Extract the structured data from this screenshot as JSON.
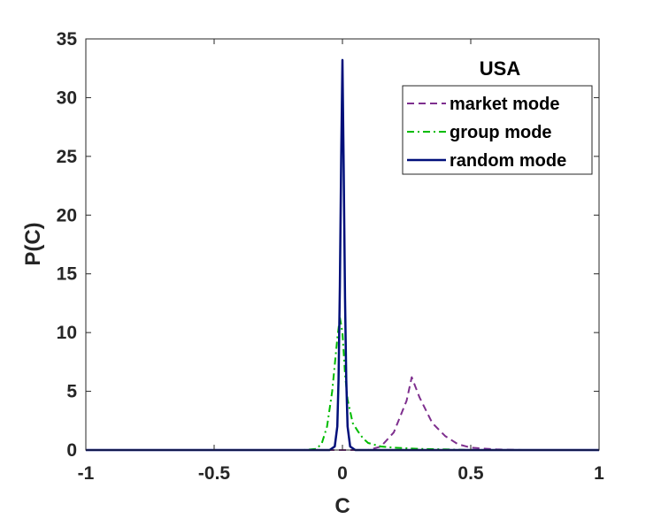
{
  "chart_data": {
    "type": "line",
    "title": "",
    "annotation": "USA",
    "xlabel": "C",
    "ylabel": "P(C)",
    "xlim": [
      -1,
      1
    ],
    "ylim": [
      0,
      35
    ],
    "xticks": [
      -1,
      -0.5,
      0,
      0.5,
      1
    ],
    "xtick_labels": [
      "-1",
      "-0.5",
      "0",
      "0.5",
      "1"
    ],
    "yticks": [
      0,
      5,
      10,
      15,
      20,
      25,
      30,
      35
    ],
    "ytick_labels": [
      "0",
      "5",
      "10",
      "15",
      "20",
      "25",
      "30",
      "35"
    ],
    "grid": false,
    "legend_position": "top-right",
    "series": [
      {
        "name": "market mode",
        "style": "dashed",
        "color": "#7E2F8E",
        "x": [
          -1,
          0.1,
          0.15,
          0.2,
          0.25,
          0.27,
          0.3,
          0.35,
          0.4,
          0.45,
          0.5,
          0.6,
          0.7,
          1
        ],
        "y": [
          0,
          0,
          0.3,
          1.5,
          4.2,
          6.2,
          4.5,
          2.3,
          1.2,
          0.5,
          0.2,
          0.05,
          0,
          0
        ]
      },
      {
        "name": "group mode",
        "style": "dashdot",
        "color": "#00BB00",
        "x": [
          -1,
          -0.15,
          -0.1,
          -0.08,
          -0.06,
          -0.04,
          -0.02,
          -0.01,
          0,
          0.01,
          0.02,
          0.04,
          0.06,
          0.08,
          0.1,
          0.15,
          0.2,
          0.3,
          0.4,
          0.5,
          1
        ],
        "y": [
          0,
          0,
          0.1,
          0.6,
          2,
          5,
          9.5,
          11.3,
          10,
          6.5,
          4.3,
          2.3,
          1.6,
          1.0,
          0.6,
          0.3,
          0.2,
          0.1,
          0.05,
          0,
          0
        ]
      },
      {
        "name": "random mode",
        "style": "solid",
        "color": "#000F7A",
        "x": [
          -1,
          -0.05,
          -0.03,
          -0.02,
          -0.015,
          -0.01,
          -0.005,
          0,
          0.005,
          0.01,
          0.015,
          0.02,
          0.03,
          0.05,
          1
        ],
        "y": [
          0,
          0,
          0.3,
          2,
          6,
          14,
          25,
          33.2,
          24,
          13,
          6,
          2,
          0.3,
          0,
          0
        ]
      }
    ]
  }
}
